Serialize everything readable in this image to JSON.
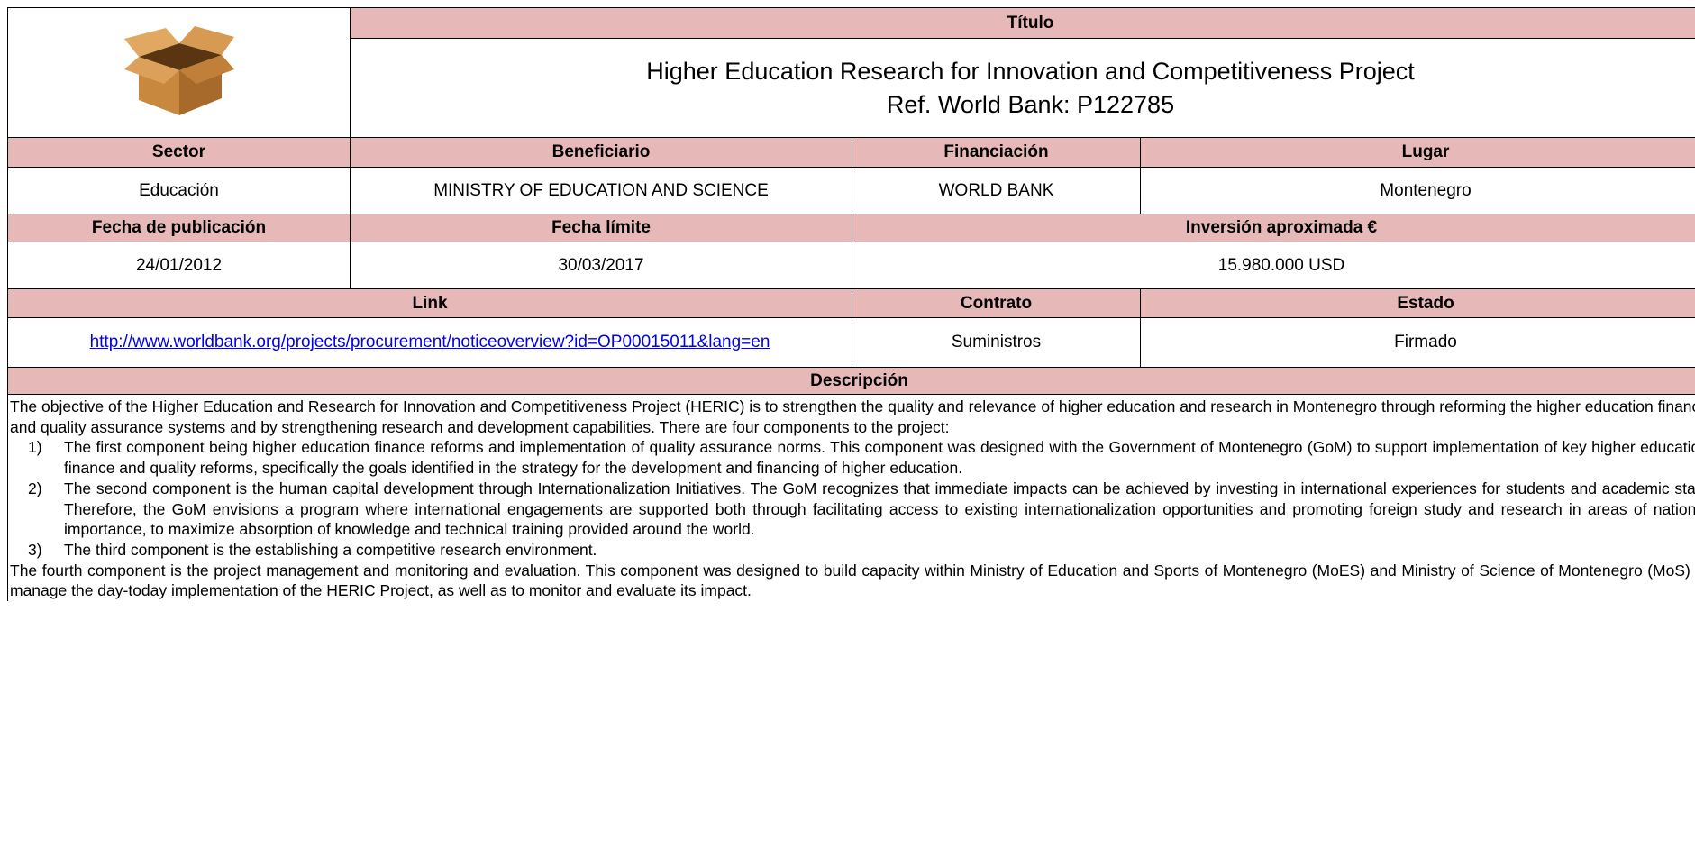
{
  "header": {
    "title_label": "Título",
    "title": "Higher Education Research for Innovation and Competitiveness Project",
    "reference": "Ref. World Bank: P122785"
  },
  "fields": {
    "sector": {
      "label": "Sector",
      "value": "Educación"
    },
    "beneficiary": {
      "label": "Beneficiario",
      "value": "MINISTRY OF EDUCATION AND SCIENCE"
    },
    "financing": {
      "label": "Financiación",
      "value": "WORLD BANK"
    },
    "place": {
      "label": "Lugar",
      "value": "Montenegro"
    },
    "publication_date": {
      "label": "Fecha de publicación",
      "value": "24/01/2012"
    },
    "deadline": {
      "label": "Fecha límite",
      "value": "30/03/2017"
    },
    "investment": {
      "label": "Inversión aproximada €",
      "value": "15.980.000 USD"
    },
    "link": {
      "label": "Link",
      "value": "http://www.worldbank.org/projects/procurement/noticeoverview?id=OP00015011&lang=en"
    },
    "contract": {
      "label": "Contrato",
      "value": "Suministros"
    },
    "status": {
      "label": "Estado",
      "value": "Firmado"
    }
  },
  "description": {
    "label": "Descripción",
    "intro": "The objective of the Higher Education and Research for Innovation and Competitiveness Project (HERIC) is to strengthen the quality and relevance of higher education and research in Montenegro through reforming the higher education finance and quality assurance systems and by strengthening research and development capabilities. There are four components to the project:",
    "items": [
      {
        "marker": "1)",
        "text": "The first component being higher education finance reforms and implementation of quality assurance norms. This component was designed with the Government of Montenegro (GoM) to support implementation of key higher education finance and quality reforms, specifically the goals identified in the strategy for the development and financing of higher education."
      },
      {
        "marker": "2)",
        "text": "The second component is the human capital development through Internationalization Initiatives. The GoM recognizes that immediate impacts can be achieved by investing in international experiences for students and academic staff. Therefore, the GoM envisions a program where international engagements are supported both through facilitating access to existing internationalization opportunities and promoting foreign study and research in areas of national importance, to maximize absorption of knowledge and technical training provided around the world."
      },
      {
        "marker": "3)",
        "text": "The third component is the establishing a competitive research environment."
      }
    ],
    "closing": "The fourth component is the project management and monitoring and evaluation. This component was designed to build capacity within Ministry of Education and Sports of Montenegro (MoES) and Ministry of Science of Montenegro (MoS) to manage the day-today implementation of the HERIC Project, as well as to monitor and evaluate its impact."
  }
}
